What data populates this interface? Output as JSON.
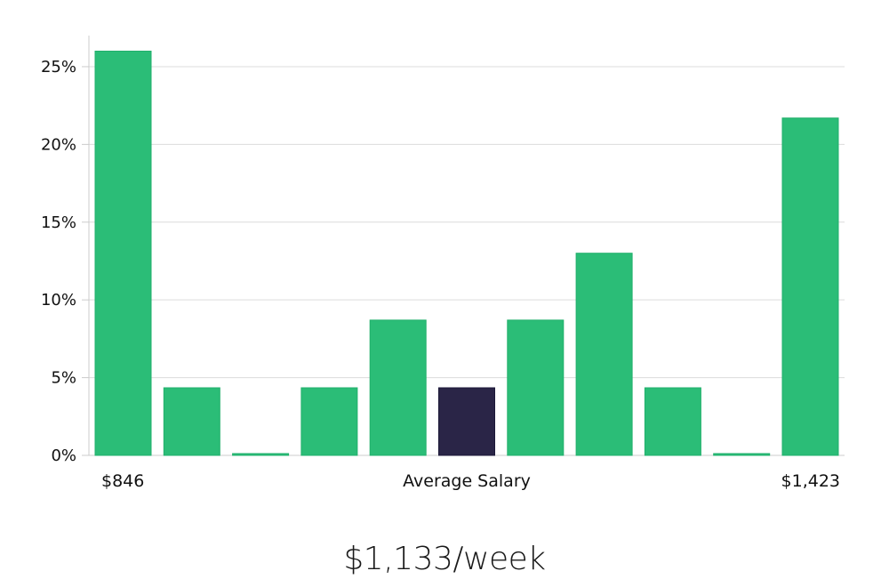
{
  "chart_data": {
    "type": "bar",
    "values": [
      26,
      4.35,
      0,
      4.35,
      8.7,
      4.35,
      8.7,
      13,
      4.35,
      0,
      21.7
    ],
    "highlight_index": 5,
    "ylim": [
      0,
      27
    ],
    "yticks": [
      0,
      5,
      10,
      15,
      20,
      25
    ],
    "ytick_labels": [
      "0%",
      "5%",
      "10%",
      "15%",
      "20%",
      "25%"
    ],
    "x_min_label": "$846",
    "x_center_label": "Average Salary",
    "x_max_label": "$1,423",
    "colors": {
      "bar": "#2bbd77",
      "highlight": "#2a2547",
      "grid": "#dcdcdc"
    }
  },
  "salary_text": "$1,133/week"
}
